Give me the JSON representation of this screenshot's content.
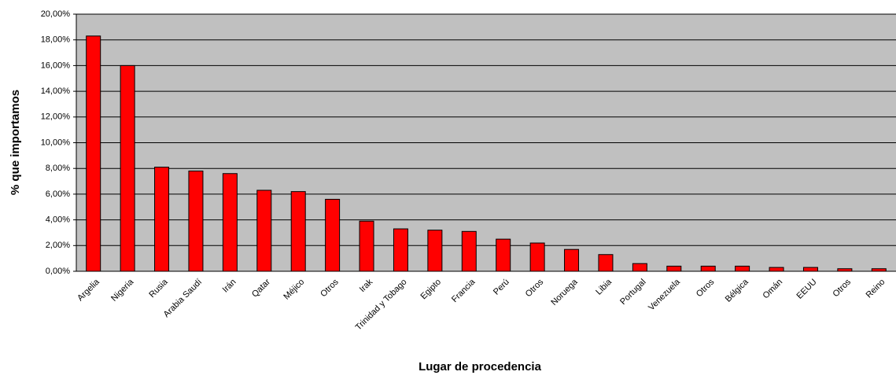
{
  "chart_data": {
    "type": "bar",
    "y_label": "% que importamos",
    "x_label": "Lugar de procedencia",
    "categories": [
      "Argelia",
      "Nigeria",
      "Rusia",
      "Arabia Saudí",
      "Irán",
      "Qatar",
      "Méjico",
      "Otros",
      "Irak",
      "Trinidad y Tobago",
      "Egipto",
      "Francia",
      "Perú",
      "Otros",
      "Noruega",
      "Libia",
      "Portugal",
      "Venezuela",
      "Otros",
      "Bélgica",
      "Omán",
      "EEUU",
      "Otros",
      "Reino"
    ],
    "values": [
      18.3,
      16.0,
      8.1,
      7.8,
      7.6,
      6.3,
      6.2,
      5.6,
      3.9,
      3.3,
      3.2,
      3.1,
      2.5,
      2.2,
      1.7,
      1.3,
      0.6,
      0.4,
      0.4,
      0.4,
      0.3,
      0.3,
      0.2,
      0.2
    ],
    "color": "#ff0000",
    "ylim": [
      0,
      20
    ],
    "yticks": [
      {
        "value": 0,
        "label": "0,00%"
      },
      {
        "value": 2,
        "label": "2,00%"
      },
      {
        "value": 4,
        "label": "4,00%"
      },
      {
        "value": 6,
        "label": "6,00%"
      },
      {
        "value": 8,
        "label": "8,00%"
      },
      {
        "value": 10,
        "label": "10,00%"
      },
      {
        "value": 12,
        "label": "12,00%"
      },
      {
        "value": 14,
        "label": "14,00%"
      },
      {
        "value": 16,
        "label": "16,00%"
      },
      {
        "value": 18,
        "label": "18,00%"
      },
      {
        "value": 20,
        "label": "20,00%"
      }
    ],
    "grid": true
  }
}
